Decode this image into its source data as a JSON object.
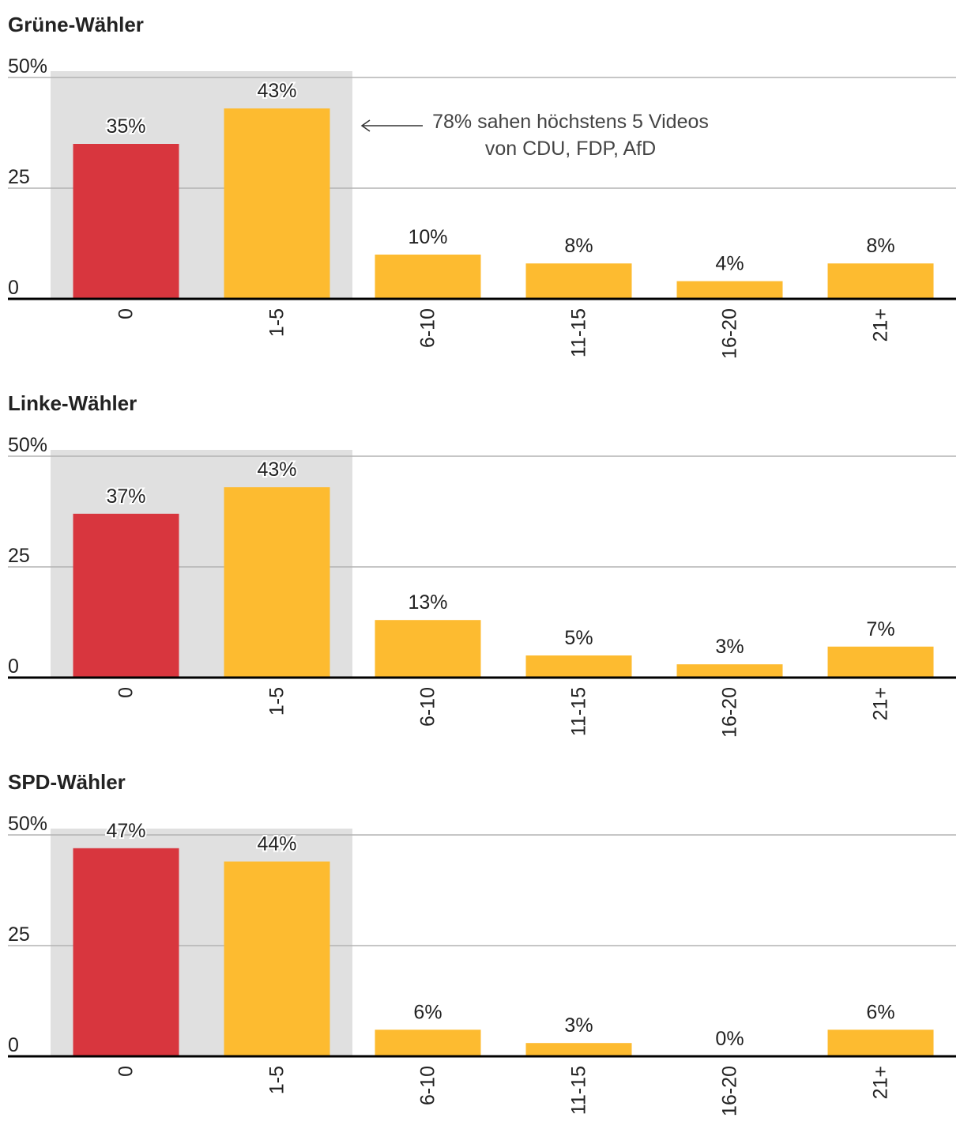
{
  "colors": {
    "zero_bar": "#d8363e",
    "bar": "#fdbb30",
    "highlight_bg": "#e0e0e0",
    "grid": "#b3b3b3",
    "axis": "#000000",
    "text": "#222222",
    "annotation_text": "#444444"
  },
  "chart_data": [
    {
      "type": "bar",
      "title": "Grüne-Wähler",
      "categories": [
        "0",
        "1-5",
        "6-10",
        "11-15",
        "16-20",
        "21+"
      ],
      "values": [
        35,
        43,
        10,
        8,
        4,
        8
      ],
      "value_labels": [
        "35%",
        "43%",
        "10%",
        "8%",
        "4%",
        "8%"
      ],
      "y_ticks": [
        {
          "value": 0,
          "label": "0"
        },
        {
          "value": 25,
          "label": "25"
        },
        {
          "value": 50,
          "label": "50%"
        }
      ],
      "ylim": [
        0,
        50
      ],
      "grid": true,
      "highlighted_categories": [
        "0",
        "1-5"
      ],
      "annotation": {
        "lines": [
          "78% sahen  höchstens 5 Videos",
          "von CDU, FDP, AfD"
        ],
        "points_to": "1-5"
      }
    },
    {
      "type": "bar",
      "title": "Linke-Wähler",
      "categories": [
        "0",
        "1-5",
        "6-10",
        "11-15",
        "16-20",
        "21+"
      ],
      "values": [
        37,
        43,
        13,
        5,
        3,
        7
      ],
      "value_labels": [
        "37%",
        "43%",
        "13%",
        "5%",
        "3%",
        "7%"
      ],
      "y_ticks": [
        {
          "value": 0,
          "label": "0"
        },
        {
          "value": 25,
          "label": "25"
        },
        {
          "value": 50,
          "label": "50%"
        }
      ],
      "ylim": [
        0,
        50
      ],
      "grid": true,
      "highlighted_categories": [
        "0",
        "1-5"
      ]
    },
    {
      "type": "bar",
      "title": "SPD-Wähler",
      "categories": [
        "0",
        "1-5",
        "6-10",
        "11-15",
        "16-20",
        "21+"
      ],
      "values": [
        47,
        44,
        6,
        3,
        0,
        6
      ],
      "value_labels": [
        "47%",
        "44%",
        "6%",
        "3%",
        "0%",
        "6%"
      ],
      "y_ticks": [
        {
          "value": 0,
          "label": "0"
        },
        {
          "value": 25,
          "label": "25"
        },
        {
          "value": 50,
          "label": "50%"
        }
      ],
      "ylim": [
        0,
        50
      ],
      "grid": true,
      "highlighted_categories": [
        "0",
        "1-5"
      ]
    }
  ]
}
